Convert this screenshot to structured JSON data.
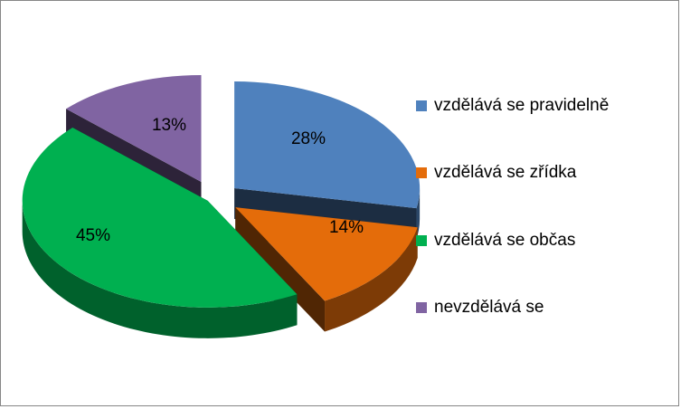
{
  "chart_data": {
    "type": "pie",
    "style": "3d-exploded",
    "title": "",
    "categories": [
      "vzdělává se pravidelně",
      "vzdělává se zřídka",
      "vzdělává se občas",
      "nevzdělává se"
    ],
    "values": [
      28,
      14,
      45,
      13
    ],
    "data_labels": [
      "28%",
      "14%",
      "45%",
      "13%"
    ],
    "colors": [
      "#4f81bd",
      "#e46c0a",
      "#00b050",
      "#8064a2"
    ],
    "legend_position": "right"
  }
}
